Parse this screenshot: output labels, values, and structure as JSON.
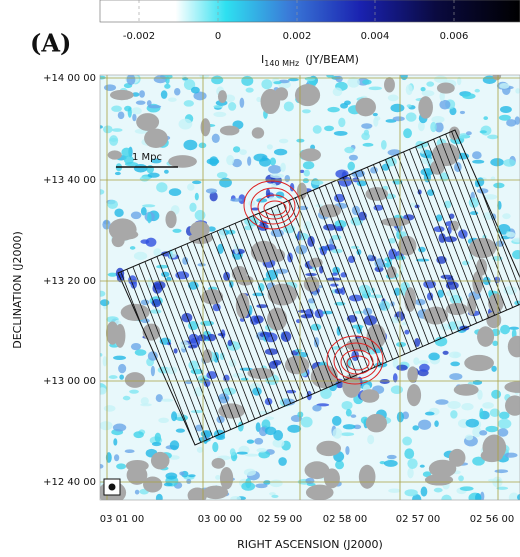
{
  "panel_label": "(A)",
  "colorbar": {
    "label": "I",
    "label_subscript": "140 MHz",
    "label_unit": "(JY/BEAM)",
    "ticks": [
      "-0.002",
      "0",
      "0.002",
      "0.004",
      "0.006"
    ]
  },
  "axes": {
    "x_label": "RIGHT ASCENSION (J2000)",
    "y_label": "DECLINATION (J2000)",
    "x_ticks": [
      "03 01 00",
      "03 00 00",
      "02 59 00",
      "02 58 00",
      "02 57 00",
      "02 56 00"
    ],
    "y_ticks": [
      "+14 00 00",
      "+13 40 00",
      "+13 20 00",
      "+13 00 00",
      "+12 40 00"
    ]
  },
  "scale_bar": "1 Mpc"
}
